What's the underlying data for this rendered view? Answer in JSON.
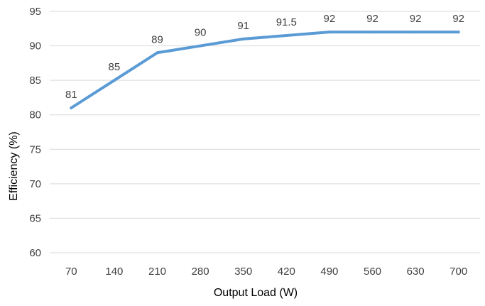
{
  "chart_data": {
    "type": "line",
    "title": "",
    "xlabel": "Output Load (W)",
    "ylabel": "Efficiency (%)",
    "categories": [
      "70",
      "140",
      "210",
      "280",
      "350",
      "420",
      "490",
      "560",
      "630",
      "700"
    ],
    "series": [
      {
        "values": [
          81,
          85,
          89,
          90,
          91,
          91.5,
          92,
          92,
          92,
          92
        ],
        "data_labels": [
          "81",
          "85",
          "89",
          "90",
          "91",
          "91.5",
          "92",
          "92",
          "92",
          "92"
        ],
        "color": "#5b9bd5"
      }
    ],
    "ylim": [
      60,
      95
    ],
    "yticks": [
      "60",
      "65",
      "70",
      "75",
      "80",
      "85",
      "90",
      "95"
    ],
    "grid": true,
    "gridColor": "#d9d9d9",
    "legend": "none"
  }
}
